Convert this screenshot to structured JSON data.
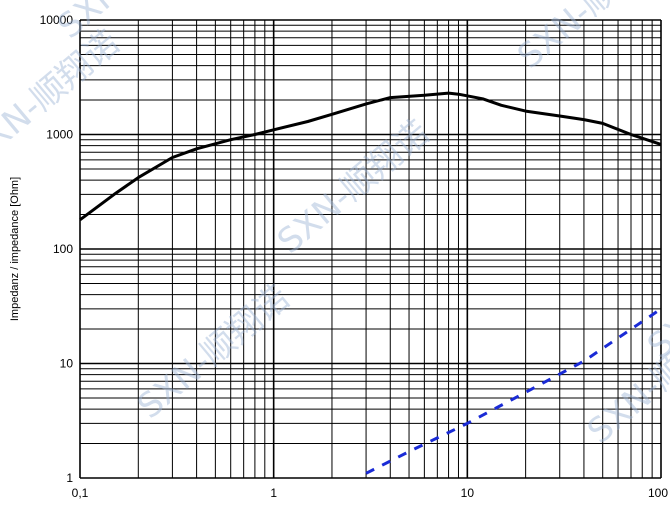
{
  "chart_data": {
    "type": "line",
    "xscale": "log",
    "yscale": "log",
    "xlim": [
      0.1,
      100
    ],
    "ylim": [
      1,
      10000
    ],
    "grid": true,
    "xlabel": "",
    "ylabel": "Impedanz / impedance [Ohm]",
    "x_tick_labels": [
      "0,1",
      "1",
      "10",
      "100"
    ],
    "y_tick_labels": [
      "1",
      "10",
      "100",
      "1000",
      "10000"
    ],
    "series": [
      {
        "style": "solid",
        "color": "#000000",
        "points": [
          [
            0.1,
            180
          ],
          [
            0.15,
            300
          ],
          [
            0.2,
            420
          ],
          [
            0.3,
            630
          ],
          [
            0.4,
            750
          ],
          [
            0.6,
            900
          ],
          [
            0.8,
            1000
          ],
          [
            1.0,
            1100
          ],
          [
            1.5,
            1300
          ],
          [
            2.0,
            1500
          ],
          [
            3.0,
            1850
          ],
          [
            4.0,
            2100
          ],
          [
            6.0,
            2200
          ],
          [
            8.0,
            2300
          ],
          [
            9.0,
            2250
          ],
          [
            12.0,
            2050
          ],
          [
            15.0,
            1800
          ],
          [
            20.0,
            1600
          ],
          [
            30.0,
            1450
          ],
          [
            40.0,
            1350
          ],
          [
            50.0,
            1250
          ],
          [
            70.0,
            1000
          ],
          [
            100.0,
            820
          ]
        ]
      },
      {
        "style": "dashed",
        "color": "#1a2bd6",
        "points": [
          [
            3.0,
            1.1
          ],
          [
            5.0,
            1.7
          ],
          [
            10.0,
            3.0
          ],
          [
            20.0,
            5.6
          ],
          [
            40.0,
            10.5
          ],
          [
            100.0,
            30
          ]
        ]
      }
    ]
  },
  "watermark": {
    "text": "SXN-顺翔诺",
    "color": "#9db4d6"
  }
}
